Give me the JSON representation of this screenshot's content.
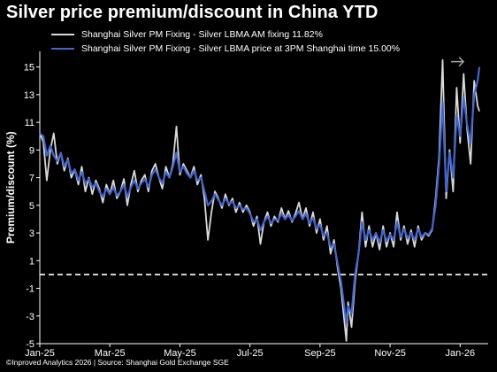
{
  "title": "Silver price premium/discount in China YTD",
  "footer": "©Inproved Analytics 2026 | Source: Shanghai Gold Exchange SGE",
  "chart_data": {
    "type": "line",
    "title": "Silver price premium/discount in China YTD",
    "xlabel": "",
    "ylabel": "Premium/discount (%)",
    "ylim": [
      -5,
      16
    ],
    "y_ticks": [
      15,
      13,
      11,
      9,
      7,
      5,
      3,
      1,
      -1,
      -3,
      -5
    ],
    "x_tick_labels": [
      "Jan-25",
      "Mar-25",
      "May-25",
      "Jul-25",
      "Sep-25",
      "Nov-25",
      "Jan-26"
    ],
    "x_tick_positions": [
      0,
      2,
      4,
      6,
      8,
      10,
      12
    ],
    "xlim": [
      0,
      12.8
    ],
    "reference_line": {
      "y": 0,
      "style": "dashed",
      "color": "#ffffff"
    },
    "grid": false,
    "legend_position": "top-left",
    "series": [
      {
        "name": "Shanghai Silver PM Fixing - Silver LBMA AM fixing 11.82%",
        "color": "#d9d9d9",
        "points": [
          [
            0,
            10.2
          ],
          [
            0.1,
            9.6
          ],
          [
            0.2,
            6.8
          ],
          [
            0.3,
            9.0
          ],
          [
            0.4,
            10.2
          ],
          [
            0.5,
            8.0
          ],
          [
            0.6,
            8.8
          ],
          [
            0.7,
            7.5
          ],
          [
            0.8,
            8.4
          ],
          [
            0.9,
            7.0
          ],
          [
            1.0,
            7.6
          ],
          [
            1.1,
            6.5
          ],
          [
            1.2,
            7.8
          ],
          [
            1.3,
            6.0
          ],
          [
            1.4,
            7.0
          ],
          [
            1.5,
            5.8
          ],
          [
            1.6,
            6.8
          ],
          [
            1.7,
            6.2
          ],
          [
            1.8,
            5.2
          ],
          [
            1.9,
            6.5
          ],
          [
            2.0,
            5.8
          ],
          [
            2.1,
            6.8
          ],
          [
            2.2,
            5.5
          ],
          [
            2.3,
            6.0
          ],
          [
            2.4,
            6.9
          ],
          [
            2.5,
            5.0
          ],
          [
            2.6,
            6.5
          ],
          [
            2.7,
            7.5
          ],
          [
            2.8,
            6.0
          ],
          [
            2.9,
            6.8
          ],
          [
            3.0,
            7.2
          ],
          [
            3.1,
            6.0
          ],
          [
            3.2,
            7.5
          ],
          [
            3.3,
            8.0
          ],
          [
            3.4,
            7.0
          ],
          [
            3.5,
            6.2
          ],
          [
            3.6,
            7.8
          ],
          [
            3.7,
            7.0
          ],
          [
            3.8,
            8.0
          ],
          [
            3.9,
            10.7
          ],
          [
            4.0,
            7.2
          ],
          [
            4.1,
            8.0
          ],
          [
            4.2,
            7.5
          ],
          [
            4.3,
            7.0
          ],
          [
            4.4,
            7.8
          ],
          [
            4.5,
            6.5
          ],
          [
            4.6,
            7.2
          ],
          [
            4.7,
            5.5
          ],
          [
            4.8,
            2.5
          ],
          [
            4.9,
            4.5
          ],
          [
            5.0,
            6.0
          ],
          [
            5.1,
            5.5
          ],
          [
            5.2,
            4.8
          ],
          [
            5.3,
            5.8
          ],
          [
            5.4,
            5.0
          ],
          [
            5.5,
            5.5
          ],
          [
            5.6,
            4.5
          ],
          [
            5.7,
            5.2
          ],
          [
            5.8,
            4.5
          ],
          [
            5.9,
            5.0
          ],
          [
            6.0,
            4.5
          ],
          [
            6.1,
            3.5
          ],
          [
            6.2,
            4.2
          ],
          [
            6.3,
            2.2
          ],
          [
            6.4,
            3.8
          ],
          [
            6.5,
            4.5
          ],
          [
            6.6,
            3.5
          ],
          [
            6.7,
            4.2
          ],
          [
            6.8,
            3.8
          ],
          [
            6.9,
            4.8
          ],
          [
            7.0,
            4.0
          ],
          [
            7.1,
            4.6
          ],
          [
            7.2,
            3.8
          ],
          [
            7.3,
            4.4
          ],
          [
            7.4,
            5.2
          ],
          [
            7.5,
            4.0
          ],
          [
            7.6,
            4.8
          ],
          [
            7.7,
            3.5
          ],
          [
            7.8,
            4.5
          ],
          [
            7.9,
            3.0
          ],
          [
            8.0,
            4.0
          ],
          [
            8.1,
            2.5
          ],
          [
            8.2,
            3.5
          ],
          [
            8.3,
            1.5
          ],
          [
            8.4,
            2.5
          ],
          [
            8.5,
            0.5
          ],
          [
            8.6,
            -1.0
          ],
          [
            8.7,
            -3.5
          ],
          [
            8.75,
            -4.8
          ],
          [
            8.8,
            -2.0
          ],
          [
            8.9,
            -3.8
          ],
          [
            9.0,
            -0.5
          ],
          [
            9.1,
            1.5
          ],
          [
            9.2,
            4.5
          ],
          [
            9.3,
            2.0
          ],
          [
            9.4,
            3.5
          ],
          [
            9.5,
            2.0
          ],
          [
            9.6,
            3.0
          ],
          [
            9.7,
            1.8
          ],
          [
            9.8,
            3.5
          ],
          [
            9.9,
            2.0
          ],
          [
            10.0,
            3.0
          ],
          [
            10.1,
            2.0
          ],
          [
            10.2,
            4.5
          ],
          [
            10.3,
            2.5
          ],
          [
            10.4,
            3.5
          ],
          [
            10.5,
            2.2
          ],
          [
            10.6,
            3.2
          ],
          [
            10.7,
            2.0
          ],
          [
            10.8,
            3.5
          ],
          [
            10.9,
            2.5
          ],
          [
            11.0,
            3.0
          ],
          [
            11.1,
            2.8
          ],
          [
            11.2,
            3.2
          ],
          [
            11.3,
            5.5
          ],
          [
            11.4,
            8.5
          ],
          [
            11.5,
            15.5
          ],
          [
            11.6,
            5.5
          ],
          [
            11.7,
            9.0
          ],
          [
            11.8,
            6.0
          ],
          [
            11.9,
            13.5
          ],
          [
            12.0,
            9.5
          ],
          [
            12.1,
            14.5
          ],
          [
            12.2,
            10.5
          ],
          [
            12.3,
            8.0
          ],
          [
            12.4,
            14.0
          ],
          [
            12.5,
            12.2
          ],
          [
            12.55,
            11.8
          ]
        ]
      },
      {
        "name": "Shanghai Silver PM Fixing - Silver LBMA price at 3PM Shanghai time 15.00%",
        "color": "#4466cc",
        "points": [
          [
            0,
            10.2
          ],
          [
            0.1,
            10.0
          ],
          [
            0.2,
            8.6
          ],
          [
            0.3,
            9.3
          ],
          [
            0.4,
            8.6
          ],
          [
            0.5,
            8.2
          ],
          [
            0.6,
            8.8
          ],
          [
            0.7,
            7.8
          ],
          [
            0.8,
            8.3
          ],
          [
            0.9,
            7.3
          ],
          [
            1.0,
            7.6
          ],
          [
            1.1,
            6.8
          ],
          [
            1.2,
            7.4
          ],
          [
            1.3,
            6.6
          ],
          [
            1.4,
            6.9
          ],
          [
            1.5,
            6.3
          ],
          [
            1.6,
            6.6
          ],
          [
            1.7,
            6.0
          ],
          [
            1.8,
            5.6
          ],
          [
            1.9,
            6.2
          ],
          [
            2.0,
            5.8
          ],
          [
            2.1,
            6.3
          ],
          [
            2.2,
            5.7
          ],
          [
            2.3,
            6.0
          ],
          [
            2.4,
            6.5
          ],
          [
            2.5,
            5.6
          ],
          [
            2.6,
            6.3
          ],
          [
            2.7,
            6.8
          ],
          [
            2.8,
            6.2
          ],
          [
            2.9,
            6.6
          ],
          [
            3.0,
            6.9
          ],
          [
            3.1,
            6.3
          ],
          [
            3.2,
            7.2
          ],
          [
            3.3,
            7.6
          ],
          [
            3.4,
            7.0
          ],
          [
            3.5,
            6.6
          ],
          [
            3.6,
            7.4
          ],
          [
            3.7,
            7.0
          ],
          [
            3.8,
            7.8
          ],
          [
            3.9,
            8.8
          ],
          [
            4.0,
            7.4
          ],
          [
            4.1,
            7.8
          ],
          [
            4.2,
            7.3
          ],
          [
            4.3,
            7.0
          ],
          [
            4.4,
            7.5
          ],
          [
            4.5,
            6.8
          ],
          [
            4.6,
            7.0
          ],
          [
            4.7,
            6.0
          ],
          [
            4.8,
            5.0
          ],
          [
            4.9,
            5.3
          ],
          [
            5.0,
            5.8
          ],
          [
            5.1,
            5.4
          ],
          [
            5.2,
            5.0
          ],
          [
            5.3,
            5.5
          ],
          [
            5.4,
            5.1
          ],
          [
            5.5,
            5.3
          ],
          [
            5.6,
            4.8
          ],
          [
            5.7,
            5.0
          ],
          [
            5.8,
            4.7
          ],
          [
            5.9,
            4.8
          ],
          [
            6.0,
            4.4
          ],
          [
            6.1,
            3.8
          ],
          [
            6.2,
            4.0
          ],
          [
            6.3,
            3.2
          ],
          [
            6.4,
            3.8
          ],
          [
            6.5,
            4.2
          ],
          [
            6.6,
            3.7
          ],
          [
            6.7,
            4.0
          ],
          [
            6.8,
            3.9
          ],
          [
            6.9,
            4.4
          ],
          [
            7.0,
            4.0
          ],
          [
            7.1,
            4.3
          ],
          [
            7.2,
            3.9
          ],
          [
            7.3,
            4.2
          ],
          [
            7.4,
            4.6
          ],
          [
            7.5,
            4.0
          ],
          [
            7.6,
            4.4
          ],
          [
            7.7,
            3.7
          ],
          [
            7.8,
            4.1
          ],
          [
            7.9,
            3.3
          ],
          [
            8.0,
            3.6
          ],
          [
            8.1,
            2.8
          ],
          [
            8.2,
            3.0
          ],
          [
            8.3,
            2.0
          ],
          [
            8.4,
            2.2
          ],
          [
            8.5,
            0.8
          ],
          [
            8.6,
            -0.5
          ],
          [
            8.7,
            -2.5
          ],
          [
            8.75,
            -3.5
          ],
          [
            8.8,
            -2.3
          ],
          [
            8.9,
            -2.8
          ],
          [
            9.0,
            0.0
          ],
          [
            9.1,
            1.5
          ],
          [
            9.2,
            3.8
          ],
          [
            9.3,
            2.5
          ],
          [
            9.4,
            3.2
          ],
          [
            9.5,
            2.5
          ],
          [
            9.6,
            3.0
          ],
          [
            9.7,
            2.3
          ],
          [
            9.8,
            3.2
          ],
          [
            9.9,
            2.4
          ],
          [
            10.0,
            2.9
          ],
          [
            10.1,
            2.5
          ],
          [
            10.2,
            3.8
          ],
          [
            10.3,
            2.7
          ],
          [
            10.4,
            3.3
          ],
          [
            10.5,
            2.6
          ],
          [
            10.6,
            3.0
          ],
          [
            10.7,
            2.5
          ],
          [
            10.8,
            3.3
          ],
          [
            10.9,
            2.7
          ],
          [
            11.0,
            3.0
          ],
          [
            11.1,
            2.9
          ],
          [
            11.2,
            3.3
          ],
          [
            11.3,
            5.0
          ],
          [
            11.4,
            8.0
          ],
          [
            11.5,
            12.5
          ],
          [
            11.6,
            6.0
          ],
          [
            11.7,
            8.8
          ],
          [
            11.8,
            7.0
          ],
          [
            11.9,
            11.5
          ],
          [
            12.0,
            10.0
          ],
          [
            12.1,
            12.8
          ],
          [
            12.2,
            10.8
          ],
          [
            12.3,
            9.5
          ],
          [
            12.4,
            13.0
          ],
          [
            12.5,
            14.0
          ],
          [
            12.55,
            15.0
          ]
        ]
      }
    ]
  }
}
